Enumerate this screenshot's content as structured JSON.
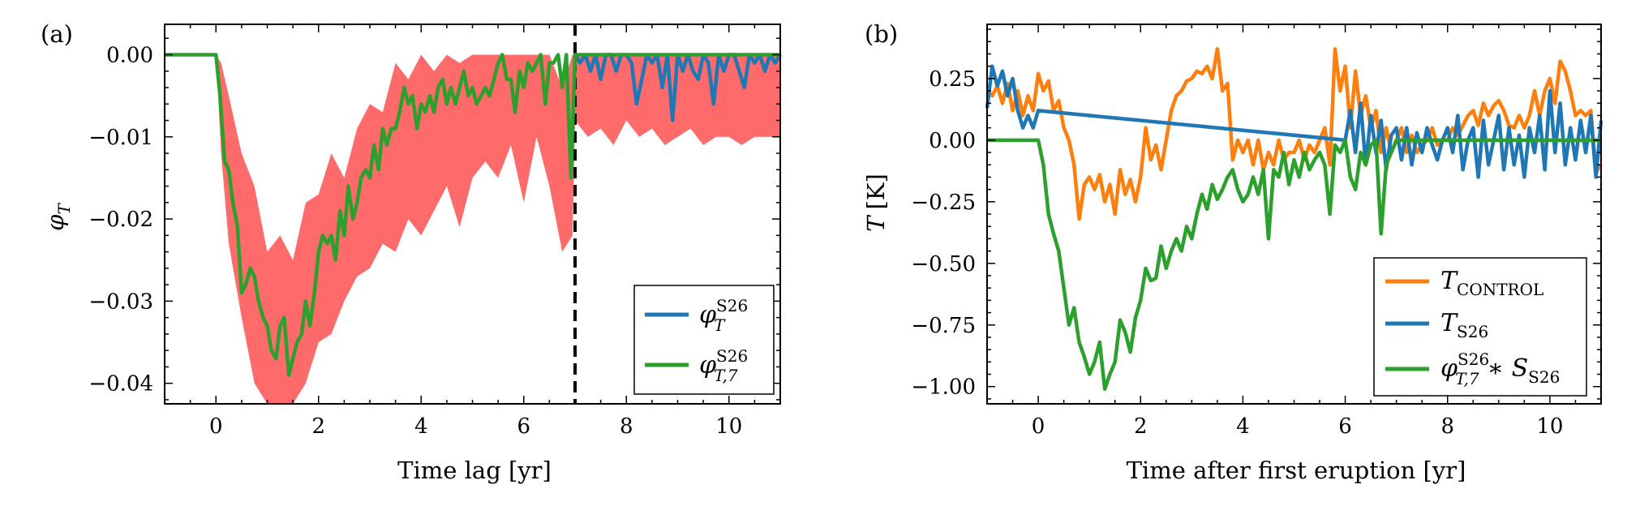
{
  "chart_data": [
    {
      "type": "line",
      "panel_label": "(a)",
      "xlabel": "Time lag [yr]",
      "ylabel_symbol": "φ",
      "ylabel_sub": "T",
      "xlim": [
        -1,
        11
      ],
      "ylim": [
        -0.0425,
        0.0037
      ],
      "xticks": [
        0,
        2,
        4,
        6,
        8,
        10
      ],
      "xtick_labels": [
        "0",
        "2",
        "4",
        "6",
        "8",
        "10"
      ],
      "yticks": [
        0.0,
        -0.01,
        -0.02,
        -0.03,
        -0.04
      ],
      "ytick_labels": [
        "0.00",
        "−0.01",
        "−0.02",
        "−0.03",
        "−0.04"
      ],
      "vline_x": 7,
      "legend_placement": "lower-right",
      "band": {
        "color": "#ff6b6b",
        "x": [
          0,
          0.1,
          0.25,
          0.5,
          0.75,
          1.0,
          1.25,
          1.5,
          1.75,
          2.0,
          2.25,
          2.5,
          2.75,
          3.0,
          3.25,
          3.5,
          3.75,
          4.0,
          4.25,
          4.5,
          4.75,
          5.0,
          5.25,
          5.5,
          5.75,
          6.0,
          6.25,
          6.5,
          6.75,
          6.95,
          7.0,
          7.25,
          7.5,
          7.75,
          8.0,
          8.25,
          8.5,
          8.75,
          9.0,
          9.25,
          9.5,
          9.75,
          10.0,
          10.25,
          10.5,
          10.75,
          11.0
        ],
        "upper": [
          0,
          -0.001,
          -0.005,
          -0.012,
          -0.016,
          -0.024,
          -0.022,
          -0.025,
          -0.018,
          -0.017,
          -0.012,
          -0.015,
          -0.009,
          -0.006,
          -0.007,
          -0.001,
          -0.003,
          0.0,
          -0.002,
          0.0,
          -0.001,
          0.0,
          0.0,
          0.0,
          0.0,
          0.0,
          0.0,
          0.0,
          -0.004,
          0.0,
          0.0,
          0.0,
          0.0,
          0.0,
          0.0,
          0.0,
          0.0,
          0.0,
          0.0,
          0.0,
          0.0,
          0.0,
          0.0,
          0.0,
          0.0,
          0.0,
          0.0
        ],
        "lower": [
          0,
          -0.012,
          -0.023,
          -0.032,
          -0.04,
          -0.044,
          -0.043,
          -0.046,
          -0.04,
          -0.035,
          -0.034,
          -0.03,
          -0.027,
          -0.026,
          -0.023,
          -0.024,
          -0.02,
          -0.022,
          -0.019,
          -0.016,
          -0.021,
          -0.015,
          -0.013,
          -0.015,
          -0.011,
          -0.018,
          -0.01,
          -0.016,
          -0.024,
          -0.022,
          -0.008,
          -0.01,
          -0.009,
          -0.011,
          -0.008,
          -0.01,
          -0.009,
          -0.011,
          -0.01,
          -0.009,
          -0.011,
          -0.01,
          -0.01,
          -0.011,
          -0.01,
          -0.01,
          -0.01
        ]
      },
      "series": [
        {
          "name_symbol": "φ",
          "name_sub": "T",
          "name_sup": "S26",
          "color": "#1f77b4",
          "x": [
            7.0,
            7.1,
            7.2,
            7.3,
            7.4,
            7.5,
            7.6,
            7.7,
            7.8,
            7.9,
            8.0,
            8.1,
            8.2,
            8.3,
            8.4,
            8.5,
            8.6,
            8.7,
            8.8,
            8.9,
            9.0,
            9.1,
            9.2,
            9.3,
            9.4,
            9.5,
            9.6,
            9.7,
            9.8,
            9.9,
            10.0,
            10.1,
            10.2,
            10.3,
            10.4,
            10.5,
            10.6,
            10.7,
            10.8,
            10.9,
            11.0
          ],
          "y": [
            0,
            -0.001,
            0,
            -0.002,
            0,
            -0.003,
            0,
            0,
            -0.002,
            0,
            0,
            -0.001,
            -0.006,
            -0.003,
            0,
            -0.001,
            0,
            -0.004,
            0,
            -0.008,
            0,
            -0.002,
            0,
            -0.002,
            -0.003,
            0,
            -0.001,
            -0.006,
            0,
            -0.002,
            0,
            0,
            -0.002,
            -0.004,
            0,
            -0.001,
            0,
            -0.002,
            0,
            -0.001,
            0
          ]
        },
        {
          "name_symbol": "φ",
          "name_sub": "T,7",
          "name_sup": "S26",
          "color": "#2ca02c",
          "x": [
            -1.0,
            0.0,
            0.08,
            0.17,
            0.25,
            0.33,
            0.42,
            0.5,
            0.58,
            0.67,
            0.75,
            0.83,
            0.92,
            1.0,
            1.08,
            1.17,
            1.25,
            1.33,
            1.42,
            1.5,
            1.58,
            1.67,
            1.75,
            1.83,
            1.92,
            2.0,
            2.08,
            2.17,
            2.25,
            2.33,
            2.42,
            2.5,
            2.58,
            2.67,
            2.75,
            2.83,
            2.92,
            3.0,
            3.08,
            3.17,
            3.25,
            3.33,
            3.42,
            3.5,
            3.58,
            3.67,
            3.75,
            3.83,
            3.92,
            4.0,
            4.08,
            4.17,
            4.25,
            4.33,
            4.42,
            4.5,
            4.58,
            4.67,
            4.75,
            4.83,
            4.92,
            5.0,
            5.08,
            5.17,
            5.25,
            5.33,
            5.42,
            5.5,
            5.58,
            5.67,
            5.75,
            5.83,
            5.92,
            6.0,
            6.08,
            6.17,
            6.25,
            6.33,
            6.42,
            6.5,
            6.58,
            6.67,
            6.75,
            6.83,
            6.92,
            7.0,
            11.0
          ],
          "y": [
            0,
            0,
            -0.005,
            -0.013,
            -0.014,
            -0.018,
            -0.021,
            -0.029,
            -0.028,
            -0.026,
            -0.027,
            -0.03,
            -0.032,
            -0.033,
            -0.036,
            -0.037,
            -0.033,
            -0.032,
            -0.039,
            -0.037,
            -0.035,
            -0.034,
            -0.03,
            -0.033,
            -0.029,
            -0.024,
            -0.022,
            -0.023,
            -0.022,
            -0.025,
            -0.019,
            -0.022,
            -0.016,
            -0.02,
            -0.018,
            -0.015,
            -0.014,
            -0.015,
            -0.011,
            -0.014,
            -0.009,
            -0.011,
            -0.009,
            -0.009,
            -0.007,
            -0.004,
            -0.006,
            -0.005,
            -0.009,
            -0.006,
            -0.007,
            -0.005,
            -0.007,
            -0.004,
            -0.003,
            -0.006,
            -0.004,
            -0.006,
            -0.004,
            -0.002,
            -0.005,
            -0.004,
            -0.006,
            -0.005,
            -0.004,
            -0.005,
            -0.003,
            -0.001,
            0.0,
            -0.003,
            -0.003,
            -0.007,
            -0.002,
            -0.004,
            -0.001,
            -0.002,
            -0.001,
            0.0,
            -0.006,
            -0.001,
            -0.001,
            0.0,
            -0.004,
            0.0,
            -0.015,
            0,
            0
          ]
        }
      ]
    },
    {
      "type": "line",
      "panel_label": "(b)",
      "xlabel": "Time after first eruption [yr]",
      "ylabel_symbol": "T",
      "ylabel_unit": "[K]",
      "xlim": [
        -1,
        11
      ],
      "ylim": [
        -1.07,
        0.47
      ],
      "xticks": [
        0,
        2,
        4,
        6,
        8,
        10
      ],
      "xtick_labels": [
        "0",
        "2",
        "4",
        "6",
        "8",
        "10"
      ],
      "yticks": [
        0.25,
        0.0,
        -0.25,
        -0.5,
        -0.75,
        -1.0
      ],
      "ytick_labels": [
        "0.25",
        "0.00",
        "−0.25",
        "−0.50",
        "−0.75",
        "−1.00"
      ],
      "legend_placement": "lower-right",
      "series": [
        {
          "name_symbol": "T",
          "name_sub": "CONTROL",
          "color": "#ff7f0e",
          "x": [
            -1.0,
            -0.9,
            -0.8,
            -0.7,
            -0.6,
            -0.5,
            -0.4,
            -0.3,
            -0.2,
            -0.1,
            0.0,
            0.1,
            0.2,
            0.3,
            0.4,
            0.5,
            0.6,
            0.7,
            0.8,
            0.9,
            1.0,
            1.1,
            1.2,
            1.3,
            1.4,
            1.5,
            1.6,
            1.7,
            1.8,
            1.9,
            2.0,
            2.1,
            2.2,
            2.3,
            2.4,
            2.5,
            2.6,
            2.7,
            2.8,
            2.9,
            3.0,
            3.1,
            3.2,
            3.3,
            3.4,
            3.5,
            3.6,
            3.7,
            3.8,
            3.9,
            4.0,
            4.1,
            4.2,
            4.3,
            4.4,
            4.5,
            4.6,
            4.7,
            4.8,
            4.9,
            5.0,
            5.1,
            5.2,
            5.3,
            5.4,
            5.5,
            5.6,
            5.7,
            5.8,
            5.9,
            6.0,
            6.1,
            6.2,
            6.3,
            6.4,
            6.5,
            6.6,
            6.7,
            6.8,
            6.9,
            7.0,
            7.1,
            7.2,
            7.3,
            7.4,
            7.5,
            7.6,
            7.7,
            7.8,
            7.9,
            8.0,
            8.1,
            8.2,
            8.3,
            8.4,
            8.5,
            8.6,
            8.7,
            8.8,
            8.9,
            9.0,
            9.1,
            9.2,
            9.3,
            9.4,
            9.5,
            9.6,
            9.7,
            9.8,
            9.9,
            10.0,
            10.1,
            10.2,
            10.3,
            10.4,
            10.5,
            10.6,
            10.7,
            10.8,
            10.9,
            11.0
          ],
          "y": [
            0.2,
            0.18,
            0.22,
            0.15,
            0.23,
            0.12,
            0.2,
            0.1,
            0.18,
            0.12,
            0.27,
            0.2,
            0.24,
            0.12,
            0.16,
            0.05,
            0.0,
            -0.1,
            -0.32,
            -0.18,
            -0.15,
            -0.2,
            -0.14,
            -0.25,
            -0.18,
            -0.3,
            -0.12,
            -0.22,
            -0.16,
            -0.25,
            -0.15,
            0.05,
            -0.08,
            -0.02,
            -0.12,
            0.0,
            0.12,
            0.18,
            0.2,
            0.24,
            0.25,
            0.28,
            0.27,
            0.3,
            0.25,
            0.37,
            0.2,
            0.23,
            -0.08,
            0.0,
            -0.05,
            0.0,
            -0.1,
            0.0,
            -0.12,
            -0.05,
            -0.1,
            0.0,
            -0.08,
            -0.05,
            -0.05,
            0.0,
            -0.08,
            -0.02,
            -0.05,
            0.0,
            0.05,
            -0.1,
            0.37,
            0.2,
            0.3,
            0.05,
            0.28,
            0.1,
            0.18,
            0.05,
            0.12,
            -0.05,
            0.05,
            -0.05,
            0.0,
            0.05,
            -0.05,
            0.02,
            -0.05,
            -0.02,
            0.0,
            0.05,
            -0.02,
            0.0,
            0.0,
            0.05,
            0.02,
            0.06,
            0.1,
            0.12,
            0.06,
            0.15,
            0.1,
            0.14,
            0.16,
            0.12,
            0.06,
            0.05,
            0.1,
            0.05,
            0.1,
            0.2,
            0.1,
            0.2,
            0.25,
            0.15,
            0.32,
            0.28,
            0.2,
            0.1,
            0.12,
            0.1,
            0.12,
            -0.13,
            -0.1
          ]
        },
        {
          "name_symbol": "T",
          "name_sub": "S26",
          "color": "#1f77b4",
          "x": [
            -1.0,
            -0.9,
            -0.8,
            -0.7,
            -0.6,
            -0.5,
            -0.4,
            -0.3,
            -0.2,
            -0.1,
            0.0,
            6.0,
            6.1,
            6.2,
            6.3,
            6.4,
            6.5,
            6.6,
            6.7,
            6.8,
            6.9,
            7.0,
            7.1,
            7.2,
            7.3,
            7.4,
            7.5,
            7.6,
            7.7,
            7.8,
            7.9,
            8.0,
            8.1,
            8.2,
            8.3,
            8.4,
            8.5,
            8.6,
            8.7,
            8.8,
            8.9,
            9.0,
            9.1,
            9.2,
            9.3,
            9.4,
            9.5,
            9.6,
            9.7,
            9.8,
            9.9,
            10.0,
            10.1,
            10.2,
            10.3,
            10.4,
            10.5,
            10.6,
            10.7,
            10.8,
            10.9,
            11.0
          ],
          "y": [
            0.13,
            0.3,
            0.22,
            0.28,
            0.18,
            0.25,
            0.12,
            0.05,
            0.1,
            0.05,
            0.12,
            0.0,
            0.12,
            -0.05,
            0.15,
            -0.1,
            0.1,
            -0.05,
            0.08,
            -0.12,
            0.02,
            0.05,
            -0.08,
            0.05,
            -0.1,
            0.03,
            -0.05,
            0.05,
            -0.02,
            -0.08,
            0.0,
            0.05,
            -0.05,
            0.1,
            -0.12,
            0.0,
            0.05,
            -0.15,
            0.08,
            -0.1,
            0.0,
            0.1,
            -0.12,
            0.05,
            -0.1,
            0.02,
            -0.15,
            0.05,
            -0.05,
            0.1,
            -0.12,
            0.2,
            -0.05,
            0.15,
            -0.1,
            0.05,
            -0.08,
            0.08,
            -0.05,
            0.1,
            -0.15,
            0.08
          ]
        },
        {
          "name_symbol": "φ",
          "name_sub": "T,7",
          "name_sup": "S26",
          "name_tail": "∗ S",
          "name_tail_sub": "S26",
          "color": "#2ca02c",
          "x": [
            -1.0,
            0.0,
            0.1,
            0.2,
            0.3,
            0.4,
            0.5,
            0.6,
            0.7,
            0.8,
            0.9,
            1.0,
            1.1,
            1.2,
            1.3,
            1.4,
            1.5,
            1.6,
            1.7,
            1.8,
            1.9,
            2.0,
            2.1,
            2.2,
            2.3,
            2.4,
            2.5,
            2.6,
            2.7,
            2.8,
            2.9,
            3.0,
            3.1,
            3.2,
            3.3,
            3.4,
            3.5,
            3.6,
            3.7,
            3.8,
            3.9,
            4.0,
            4.1,
            4.2,
            4.3,
            4.4,
            4.5,
            4.6,
            4.7,
            4.8,
            4.9,
            5.0,
            5.1,
            5.2,
            5.3,
            5.4,
            5.5,
            5.6,
            5.7,
            5.8,
            5.9,
            6.0,
            6.1,
            6.2,
            6.3,
            6.4,
            6.5,
            6.6,
            6.7,
            6.8,
            6.9,
            7.0,
            11.0
          ],
          "y": [
            0.0,
            0.0,
            -0.1,
            -0.3,
            -0.38,
            -0.45,
            -0.6,
            -0.75,
            -0.68,
            -0.82,
            -0.88,
            -0.95,
            -0.9,
            -0.82,
            -1.01,
            -0.95,
            -0.9,
            -0.73,
            -0.78,
            -0.86,
            -0.72,
            -0.65,
            -0.52,
            -0.57,
            -0.56,
            -0.43,
            -0.52,
            -0.45,
            -0.4,
            -0.45,
            -0.35,
            -0.4,
            -0.3,
            -0.22,
            -0.28,
            -0.18,
            -0.24,
            -0.2,
            -0.15,
            -0.12,
            -0.2,
            -0.25,
            -0.22,
            -0.15,
            -0.22,
            -0.12,
            -0.4,
            -0.12,
            -0.15,
            -0.05,
            -0.18,
            -0.08,
            -0.15,
            -0.05,
            -0.12,
            -0.08,
            -0.05,
            -0.1,
            -0.3,
            -0.02,
            -0.05,
            0.0,
            -0.15,
            -0.2,
            -0.05,
            -0.1,
            -0.02,
            0.0,
            -0.38,
            -0.1,
            -0.05,
            0.0,
            0.0
          ]
        }
      ]
    }
  ]
}
